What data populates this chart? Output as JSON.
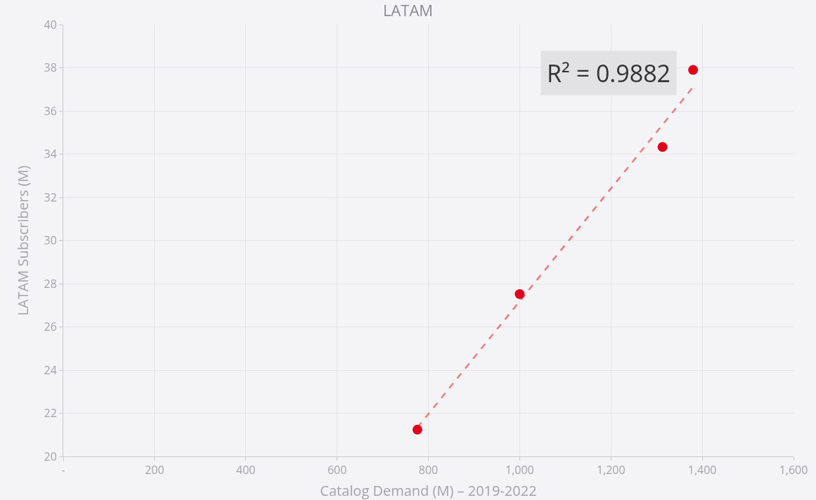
{
  "chart_data": {
    "type": "scatter",
    "title": "LATAM",
    "xlabel": "Catalog Demand (M) – 2019-2022",
    "ylabel": "LATAM Subscribers (M)",
    "xlim": [
      0,
      1600
    ],
    "xticks": [
      {
        "value": 0,
        "label": "-"
      },
      200,
      400,
      600,
      800,
      {
        "value": 1000,
        "label": "1,000"
      },
      {
        "value": 1200,
        "label": "1,200"
      },
      {
        "value": 1400,
        "label": "1,400"
      },
      {
        "value": 1600,
        "label": "1,600"
      }
    ],
    "ylim": [
      20,
      40
    ],
    "yticks": [
      20,
      22,
      24,
      26,
      28,
      30,
      32,
      34,
      36,
      38,
      40
    ],
    "grid": true,
    "annotations": [
      "R² = 0.9882"
    ],
    "series": [
      {
        "type": "line",
        "color": "#ee7a80",
        "x": [
          776,
          1380
        ],
        "values": [
          21.34,
          37.11
        ],
        "line_style": "dashed",
        "marker": "none"
      },
      {
        "color": "#e0001b",
        "x": [
          776,
          1000,
          1313,
          1380
        ],
        "values": [
          21.24,
          27.52,
          34.33,
          37.9
        ],
        "marker": "circle"
      }
    ]
  }
}
